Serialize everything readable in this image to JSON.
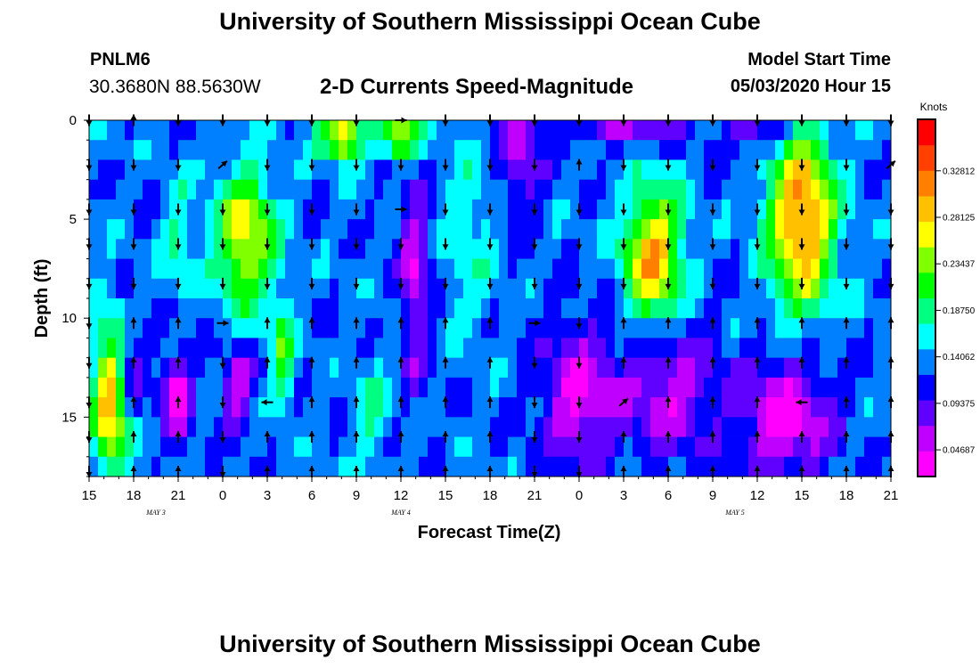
{
  "header": {
    "title": "University of Southern Mississippi Ocean Cube",
    "station_id": "PNLM6",
    "station_location": "30.3680N 88.5630W",
    "plot_title": "2-D Currents Speed-Magnitude",
    "model_start_label": "Model Start Time",
    "model_start_value": "05/03/2020 Hour 15"
  },
  "footer": {
    "title": "University of Southern Mississippi Ocean Cube"
  },
  "chart_data": {
    "type": "heatmap",
    "title": "2-D Currents Speed-Magnitude",
    "xlabel": "Forecast Time(Z)",
    "ylabel": "Depth (ft)",
    "x_range_hours": [
      0,
      54
    ],
    "x_ticks": [
      "15",
      "18",
      "21",
      "0",
      "3",
      "6",
      "9",
      "12",
      "15",
      "18",
      "21",
      "0",
      "3",
      "6",
      "9",
      "12",
      "15",
      "18",
      "21"
    ],
    "day_labels": [
      {
        "text": "MAY 3",
        "hour": 4.5
      },
      {
        "text": "MAY 4",
        "hour": 21
      },
      {
        "text": "MAY 5",
        "hour": 43.5
      }
    ],
    "y_range_ft": [
      0,
      18
    ],
    "y_ticks": [
      0,
      5,
      10,
      15
    ],
    "y_tick_labels": [
      "0",
      "5",
      "10",
      "15"
    ],
    "colorbar": {
      "unit": "Knots",
      "min": 0.02,
      "max": 0.38,
      "ticks": [
        0.04687,
        0.09375,
        0.14062,
        0.1875,
        0.23437,
        0.28125,
        0.32812
      ],
      "tick_labels": [
        "0.04687",
        "0.09375",
        "0.14062",
        "0.18750",
        "0.23437",
        "0.28125",
        "0.32812"
      ],
      "colors": [
        "#ff00ff",
        "#c000ff",
        "#6000ff",
        "#0000ff",
        "#0080ff",
        "#00ffff",
        "#00ff80",
        "#00ff00",
        "#80ff00",
        "#ffff00",
        "#ffc000",
        "#ff8000",
        "#ff4000",
        "#ff0000"
      ]
    },
    "model": {
      "base": 0.13,
      "low_rows": [
        0,
        1,
        10,
        11,
        12,
        13,
        14,
        15,
        16,
        17
      ],
      "blobs": [
        {
          "t": 1.5,
          "d": 14,
          "st": 1.2,
          "sd": 4,
          "a": 0.18
        },
        {
          "t": 6,
          "d": 6,
          "st": 0.9,
          "sd": 3,
          "a": 0.05
        },
        {
          "t": 10.5,
          "d": 6,
          "st": 2,
          "sd": 3.5,
          "a": 0.14
        },
        {
          "t": 13,
          "d": 12,
          "st": 0.8,
          "sd": 3,
          "a": 0.08
        },
        {
          "t": 17,
          "d": 0.8,
          "st": 1.5,
          "sd": 1.2,
          "a": 0.16
        },
        {
          "t": 21,
          "d": 0.8,
          "st": 1.2,
          "sd": 1.2,
          "a": 0.14
        },
        {
          "t": 19,
          "d": 15,
          "st": 1,
          "sd": 3,
          "a": 0.05
        },
        {
          "t": 25.5,
          "d": 6,
          "st": 2,
          "sd": 5,
          "a": 0.04
        },
        {
          "t": 38,
          "d": 7,
          "st": 2,
          "sd": 3.5,
          "a": 0.17
        },
        {
          "t": 48,
          "d": 5,
          "st": 2.2,
          "sd": 4.5,
          "a": 0.19
        },
        {
          "t": 2.5,
          "d": 12.5,
          "st": 1.3,
          "sd": 2.5,
          "a": -0.07
        },
        {
          "t": 10,
          "d": 13.5,
          "st": 1,
          "sd": 2,
          "a": -0.08
        },
        {
          "t": 6,
          "d": 14,
          "st": 1,
          "sd": 2.2,
          "a": -0.1
        },
        {
          "t": 22,
          "d": 8,
          "st": 1,
          "sd": 5,
          "a": -0.08
        },
        {
          "t": 33,
          "d": 14,
          "st": 2.5,
          "sd": 3.5,
          "a": -0.09
        },
        {
          "t": 39,
          "d": 13.5,
          "st": 3,
          "sd": 3.5,
          "a": -0.08
        },
        {
          "t": 47,
          "d": 15,
          "st": 3,
          "sd": 3,
          "a": -0.1
        },
        {
          "t": 29,
          "d": 2,
          "st": 1.5,
          "sd": 3,
          "a": -0.06
        },
        {
          "t": 36,
          "d": 0.3,
          "st": 4,
          "sd": 1,
          "a": -0.06
        },
        {
          "t": 45,
          "d": 0.5,
          "st": 2,
          "sd": 1.2,
          "a": -0.06
        }
      ]
    },
    "arrow_grid": {
      "hours": [
        0,
        3,
        6,
        9,
        12,
        15,
        18,
        21,
        24,
        27,
        30,
        33,
        36,
        39,
        42,
        45,
        48,
        51,
        54
      ],
      "depths": [
        0,
        2.25,
        4.5,
        6.25,
        8.25,
        10.25,
        12.25,
        14.25,
        16,
        17.75
      ],
      "exceptions": [
        {
          "h": 3,
          "d": 0,
          "dir": "up"
        },
        {
          "h": 21,
          "d": 0,
          "dir": "right"
        },
        {
          "h": 9,
          "d": 2.25,
          "dir": "up-right"
        },
        {
          "h": 33,
          "d": 2.25,
          "dir": "up"
        },
        {
          "h": 54,
          "d": 2.25,
          "dir": "up-right"
        },
        {
          "h": 21,
          "d": 4.5,
          "dir": "right"
        },
        {
          "h": 9,
          "d": 10.25,
          "dir": "right"
        },
        {
          "h": 30,
          "d": 10.25,
          "dir": "right"
        },
        {
          "h": 36,
          "d": 14.25,
          "dir": "up-right"
        },
        {
          "h": 12,
          "d": 14.25,
          "dir": "left"
        },
        {
          "h": 48,
          "d": 14.25,
          "dir": "left"
        }
      ],
      "up_rows_from": 10.25,
      "up_hours": [
        3,
        6,
        12,
        15,
        18,
        21,
        24,
        27,
        36,
        39,
        42,
        45,
        48,
        51,
        54
      ]
    }
  }
}
